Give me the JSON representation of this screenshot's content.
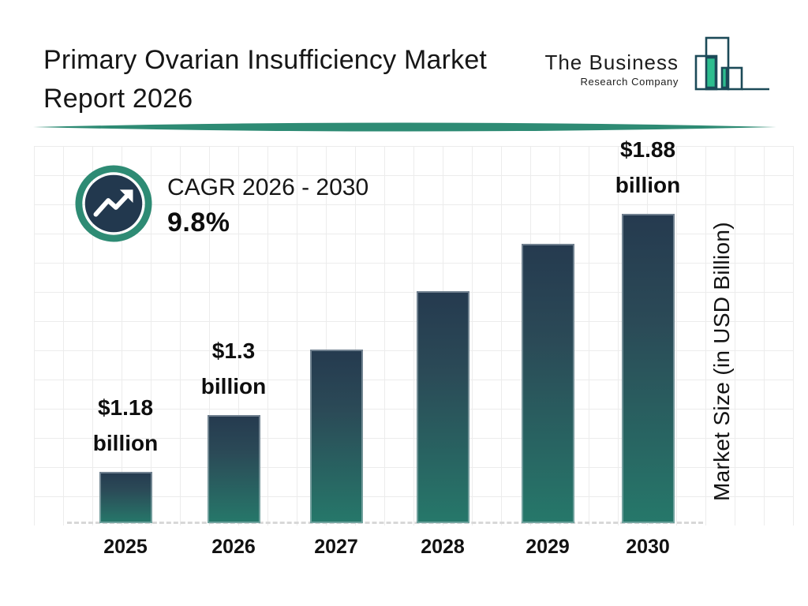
{
  "header": {
    "title_line1": "Primary Ovarian Insufficiency Market",
    "title_line2": "Report 2026",
    "logo": {
      "name": "The Business",
      "subtitle": "Research Company"
    }
  },
  "cagr": {
    "label": "CAGR 2026 - 2030",
    "value": "9.8%"
  },
  "chart_data": {
    "type": "bar",
    "title": "Primary Ovarian Insufficiency Market Report 2026",
    "categories": [
      "2025",
      "2026",
      "2027",
      "2028",
      "2029",
      "2030"
    ],
    "values": [
      1.18,
      1.3,
      1.43,
      1.57,
      1.72,
      1.88
    ],
    "unit": "USD Billion",
    "value_labels": [
      "$1.18 billion",
      "$1.3 billion",
      null,
      null,
      null,
      "$1.88 billion"
    ],
    "ylabel": "Market Size (in USD Billion)",
    "xlabel": "",
    "cagr_label": "CAGR 2026 - 2030",
    "cagr_value": "9.8%",
    "grid": true,
    "legend": false,
    "bar_heights_relative": [
      0.166,
      0.349,
      0.561,
      0.75,
      0.903,
      1.0
    ],
    "bar_gradient_top": "#253a4f",
    "bar_gradient_bottom": "#26786a"
  },
  "icons": {
    "cagr_icon": "trending-up-circle",
    "logo_icon": "bar-chart-logo"
  },
  "colors": {
    "accent_teal": "#2E8B74",
    "logo_green": "#2DBD8E",
    "logo_outline": "#1C4A58",
    "grid_line": "#ececec",
    "baseline_dash": "#d8d8d8",
    "text": "#161616"
  }
}
